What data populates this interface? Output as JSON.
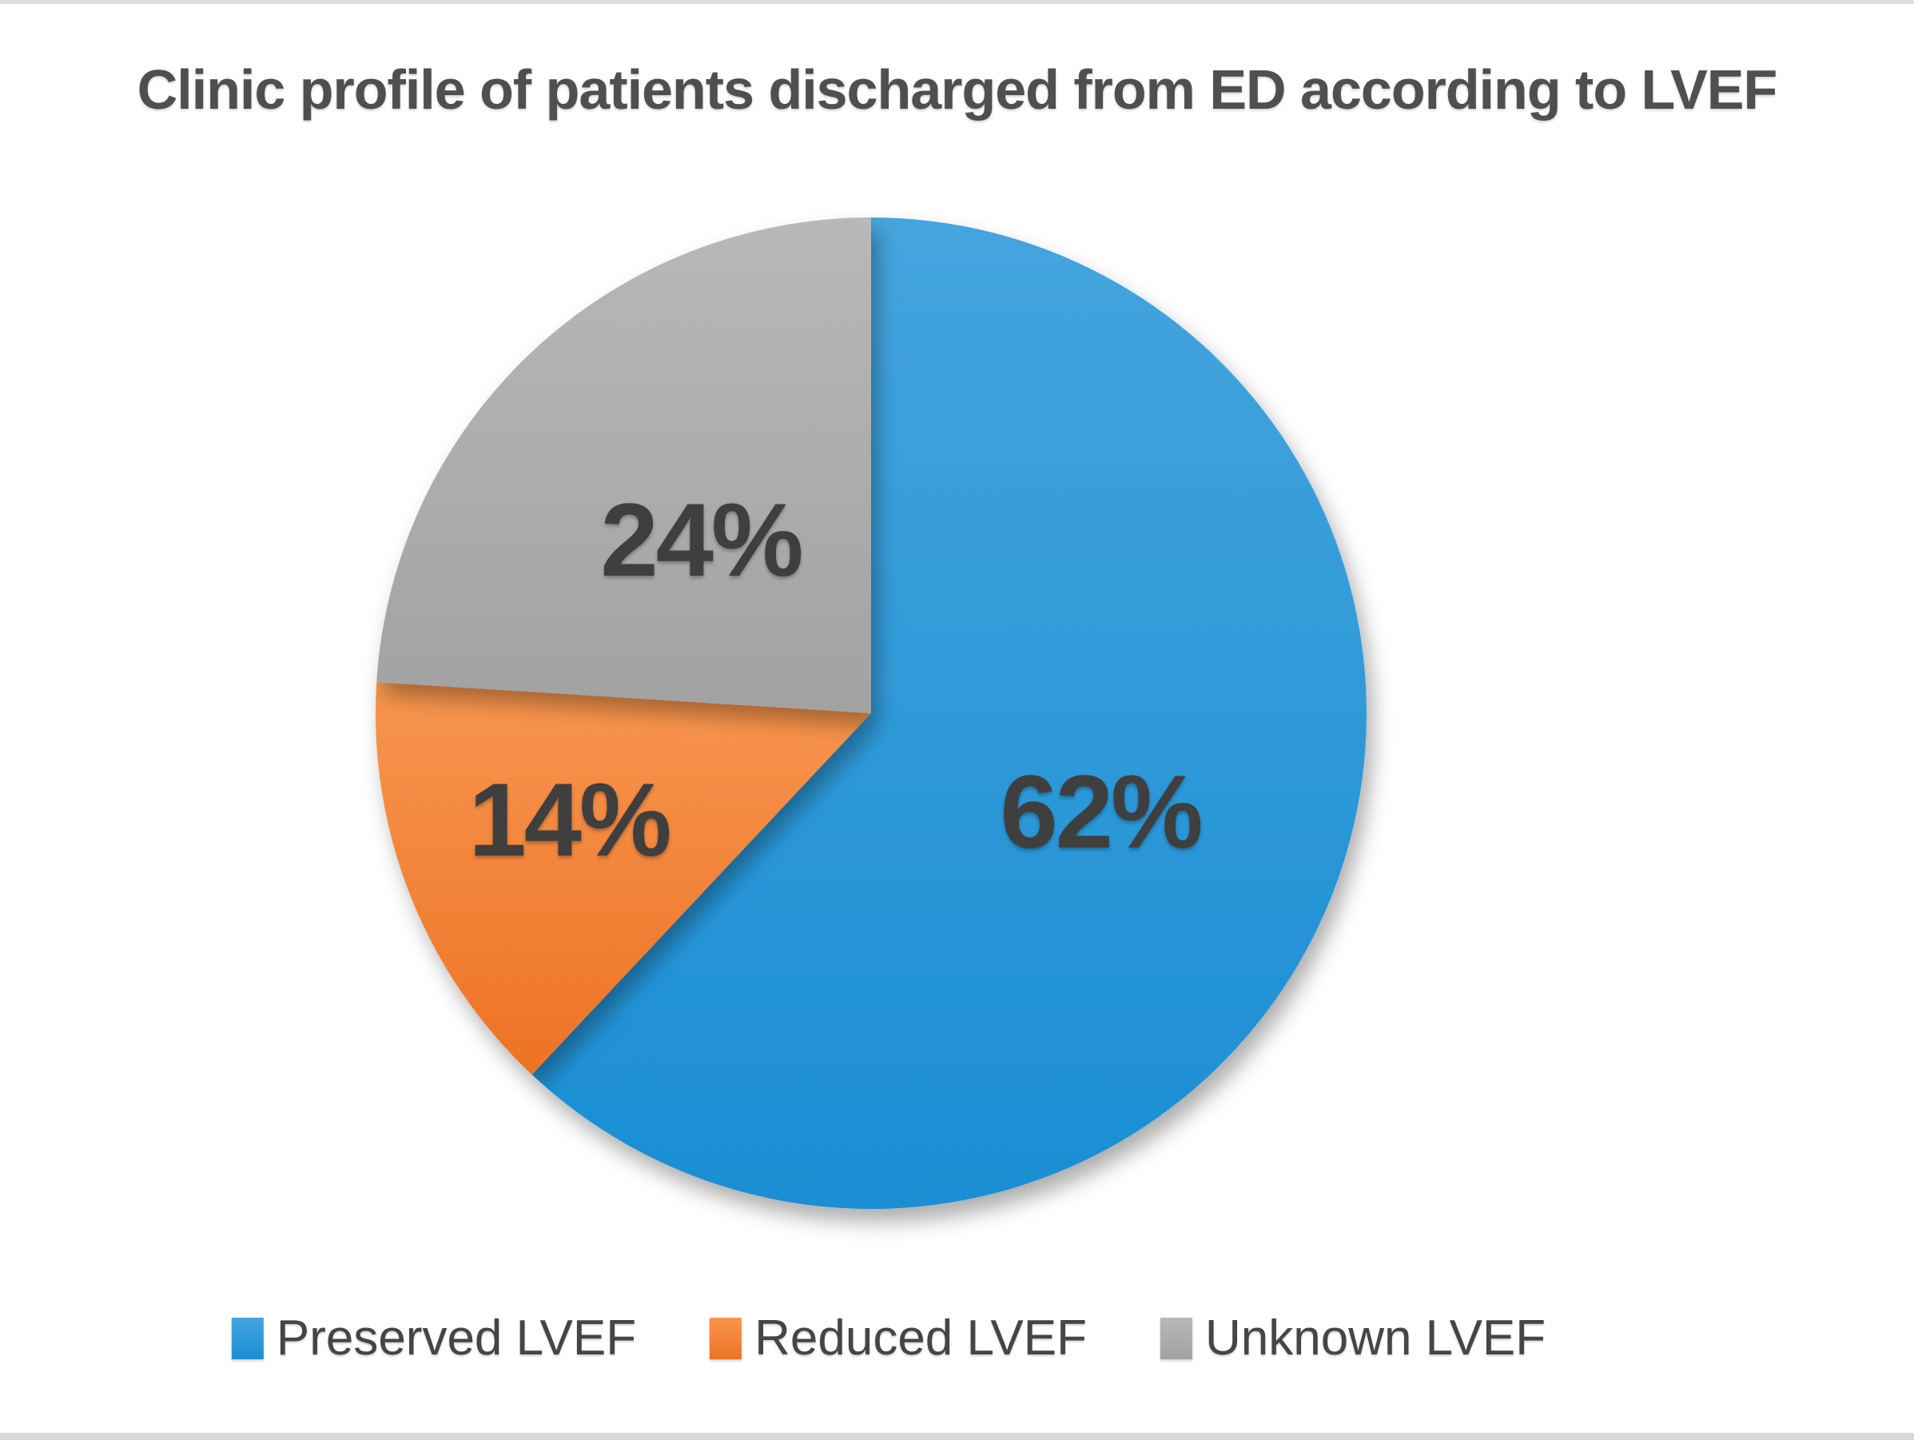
{
  "title": "Clinic profile of patients discharged from ED according to LVEF",
  "chart_data": {
    "type": "pie",
    "title": "Clinic profile of patients discharged from ED according to LVEF",
    "categories": [
      "Preserved LVEF",
      "Reduced LVEF",
      "Unknown LVEF"
    ],
    "values": [
      62,
      14,
      24
    ],
    "labels": [
      "62%",
      "14%",
      "24%"
    ],
    "colors": [
      "#1a8ed3",
      "#ed7225",
      "#a2a2a2"
    ],
    "colors_light": [
      "#45a5de",
      "#f8964f",
      "#b8b8b8"
    ],
    "start_angle_deg": 0,
    "direction": "clockwise",
    "legend_position": "bottom",
    "label_color": "#3f3f3f",
    "title_color": "#4f4f4f"
  },
  "legend": {
    "items": [
      {
        "label": "Preserved LVEF",
        "color": "#1a8ed3"
      },
      {
        "label": "Reduced LVEF",
        "color": "#ed7225"
      },
      {
        "label": "Unknown LVEF",
        "color": "#a2a2a2"
      }
    ]
  }
}
